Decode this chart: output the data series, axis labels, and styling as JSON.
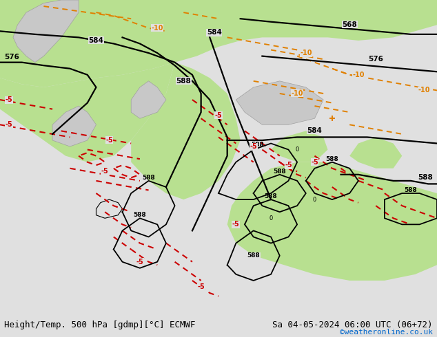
{
  "title_left": "Height/Temp. 500 hPa [gdmp][°C] ECMWF",
  "title_right": "Sa 04-05-2024 06:00 UTC (06+72)",
  "copyright": "©weatheronline.co.uk",
  "copyright_color": "#0066cc",
  "background_color": "#e0e0e0",
  "map_bg_color": "#e0e0e0",
  "green_fill_color": "#b8e090",
  "gray_land_color": "#c8c8c8",
  "fig_width": 6.34,
  "fig_height": 4.9,
  "dpi": 100,
  "bottom_bar_color": "#f0f0f0",
  "title_fontsize": 9,
  "copyright_fontsize": 8,
  "black_lw": 1.6,
  "orange_color": "#e08000",
  "red_color": "#cc0000"
}
